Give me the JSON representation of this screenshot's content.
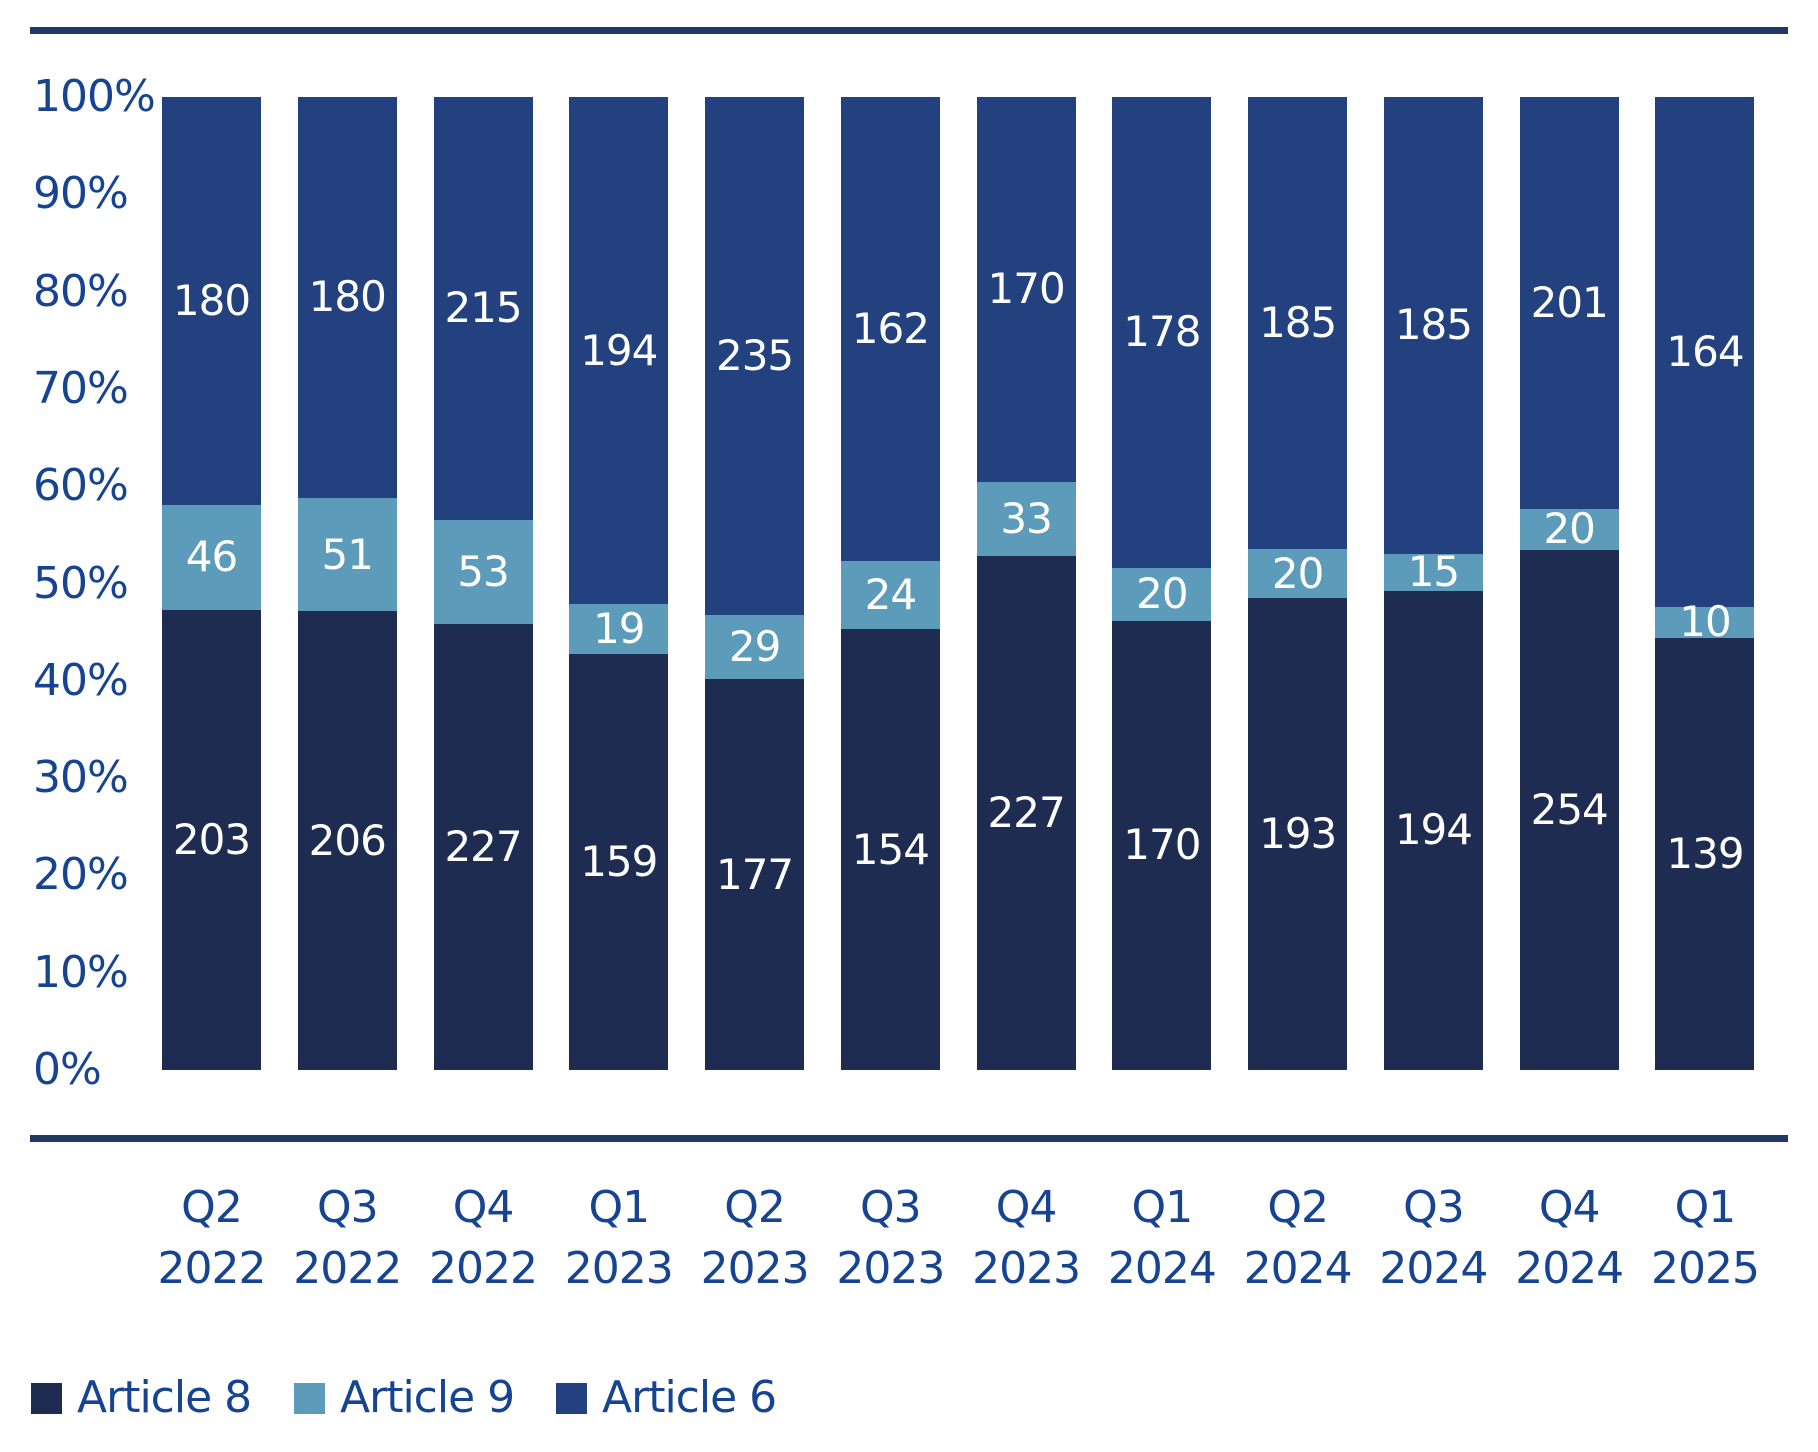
{
  "chart_data": {
    "type": "bar",
    "stacked": true,
    "stack_mode": "percent",
    "title": "",
    "xlabel": "",
    "ylabel": "",
    "grid": false,
    "legend_position": "bottom",
    "categories": [
      {
        "quarter": "Q2",
        "year": "2022"
      },
      {
        "quarter": "Q3",
        "year": "2022"
      },
      {
        "quarter": "Q4",
        "year": "2022"
      },
      {
        "quarter": "Q1",
        "year": "2023"
      },
      {
        "quarter": "Q2",
        "year": "2023"
      },
      {
        "quarter": "Q3",
        "year": "2023"
      },
      {
        "quarter": "Q4",
        "year": "2023"
      },
      {
        "quarter": "Q1",
        "year": "2024"
      },
      {
        "quarter": "Q2",
        "year": "2024"
      },
      {
        "quarter": "Q3",
        "year": "2024"
      },
      {
        "quarter": "Q4",
        "year": "2024"
      },
      {
        "quarter": "Q1",
        "year": "2025"
      }
    ],
    "series": [
      {
        "name": "Article 8",
        "color": "#1d2c50",
        "values": [
          203,
          206,
          227,
          159,
          177,
          154,
          227,
          170,
          193,
          194,
          254,
          139
        ]
      },
      {
        "name": "Article 9",
        "color": "#5d9bba",
        "values": [
          46,
          51,
          53,
          19,
          29,
          24,
          33,
          20,
          20,
          15,
          20,
          10
        ]
      },
      {
        "name": "Article 6",
        "color": "#22417e",
        "values": [
          180,
          180,
          215,
          194,
          235,
          162,
          170,
          178,
          185,
          185,
          201,
          164
        ]
      }
    ],
    "y_axis": {
      "min": 0,
      "max": 100,
      "ticks": [
        "100%",
        "90%",
        "80%",
        "70%",
        "60%",
        "50%",
        "40%",
        "30%",
        "20%",
        "10%",
        "0%"
      ]
    },
    "colors": {
      "axis_text": "#174492",
      "bar_label": "#ffffff",
      "rule": "#1f3864"
    }
  }
}
